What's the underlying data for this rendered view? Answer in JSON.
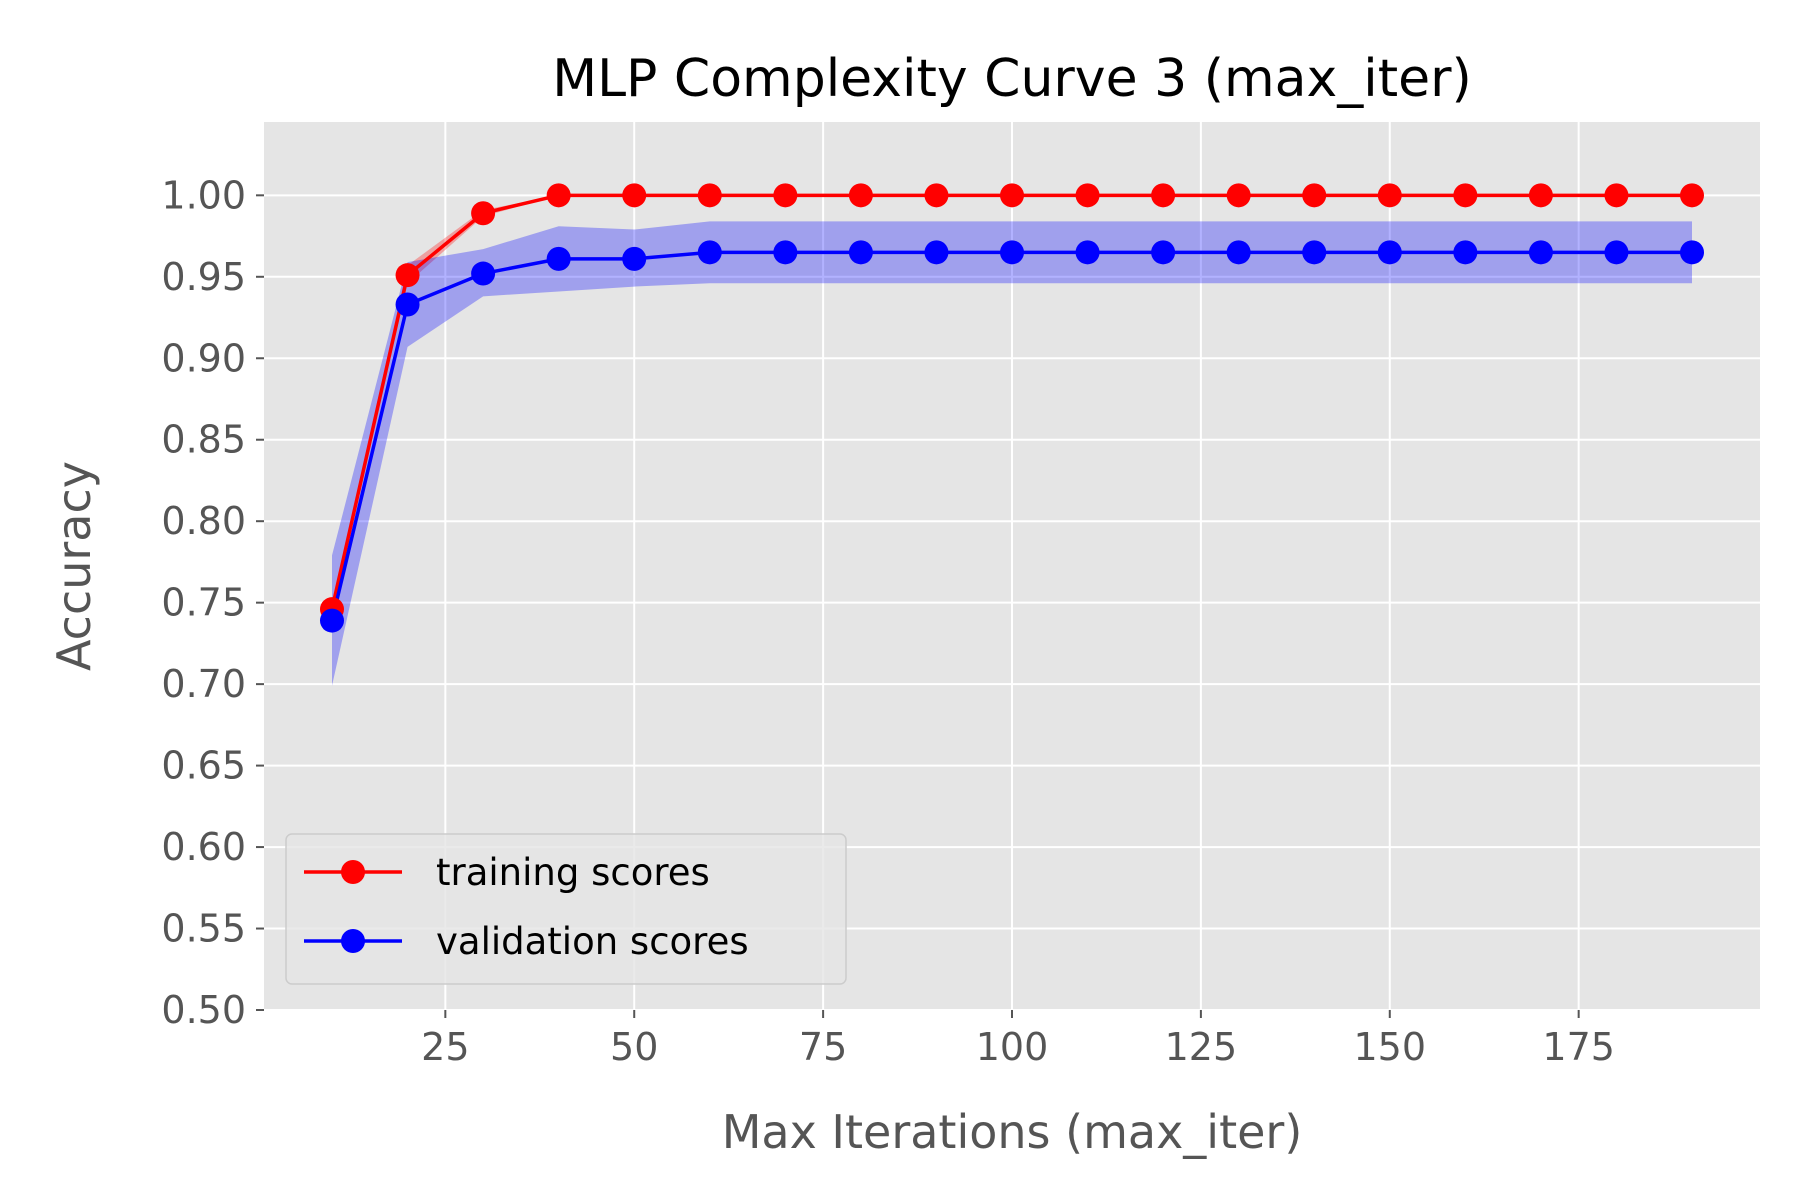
{
  "chart_data": {
    "type": "line",
    "title": "MLP Complexity Curve 3 (max_iter)",
    "xlabel": "Max Iterations (max_iter)",
    "ylabel": "Accuracy",
    "xlim": [
      1.0,
      199.0
    ],
    "ylim": [
      0.5,
      1.045
    ],
    "xticks": [
      25,
      50,
      75,
      100,
      125,
      150,
      175
    ],
    "xtick_labels": [
      "25",
      "50",
      "75",
      "100",
      "125",
      "150",
      "175"
    ],
    "yticks": [
      0.5,
      0.55,
      0.6,
      0.65,
      0.7,
      0.75,
      0.8,
      0.85,
      0.9,
      0.95,
      1.0
    ],
    "ytick_labels": [
      "0.50",
      "0.55",
      "0.60",
      "0.65",
      "0.70",
      "0.75",
      "0.80",
      "0.85",
      "0.90",
      "0.95",
      "1.00"
    ],
    "grid": true,
    "legend_position": "lower-left",
    "x": [
      10,
      20,
      30,
      40,
      50,
      60,
      70,
      80,
      90,
      100,
      110,
      120,
      130,
      140,
      150,
      160,
      170,
      180,
      190
    ],
    "series": [
      {
        "name": "training scores",
        "color": "#ff0000",
        "band_color": "#ff0000",
        "values": [
          0.746,
          0.951,
          0.989,
          1.0,
          1.0,
          1.0,
          1.0,
          1.0,
          1.0,
          1.0,
          1.0,
          1.0,
          1.0,
          1.0,
          1.0,
          1.0,
          1.0,
          1.0,
          1.0
        ],
        "band_lower": [
          0.745,
          0.946,
          0.987,
          1.0,
          1.0,
          1.0,
          1.0,
          1.0,
          1.0,
          1.0,
          1.0,
          1.0,
          1.0,
          1.0,
          1.0,
          1.0,
          1.0,
          1.0,
          1.0
        ],
        "band_upper": [
          0.748,
          0.957,
          0.991,
          1.0,
          1.0,
          1.0,
          1.0,
          1.0,
          1.0,
          1.0,
          1.0,
          1.0,
          1.0,
          1.0,
          1.0,
          1.0,
          1.0,
          1.0,
          1.0
        ]
      },
      {
        "name": "validation scores",
        "color": "#0000ff",
        "band_color": "#0000ff",
        "values": [
          0.739,
          0.933,
          0.952,
          0.961,
          0.961,
          0.965,
          0.965,
          0.965,
          0.965,
          0.965,
          0.965,
          0.965,
          0.965,
          0.965,
          0.965,
          0.965,
          0.965,
          0.965,
          0.965
        ],
        "band_lower": [
          0.699,
          0.907,
          0.938,
          0.941,
          0.944,
          0.946,
          0.946,
          0.946,
          0.946,
          0.946,
          0.946,
          0.946,
          0.946,
          0.946,
          0.946,
          0.946,
          0.946,
          0.946,
          0.946
        ],
        "band_upper": [
          0.779,
          0.959,
          0.967,
          0.981,
          0.979,
          0.984,
          0.984,
          0.984,
          0.984,
          0.984,
          0.984,
          0.984,
          0.984,
          0.984,
          0.984,
          0.984,
          0.984,
          0.984,
          0.984
        ]
      }
    ]
  }
}
